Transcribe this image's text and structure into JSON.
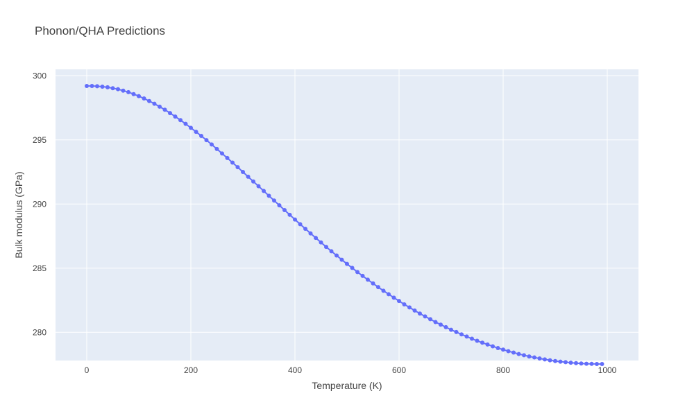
{
  "chart_data": {
    "type": "scatter",
    "mode": "lines+markers",
    "title": "Phonon/QHA Predictions",
    "xlabel": "Temperature (K)",
    "ylabel": "Bulk modulus (GPa)",
    "xlim": [
      -60,
      1060
    ],
    "ylim": [
      277.8,
      300.5
    ],
    "xticks": [
      0,
      200,
      400,
      600,
      800,
      1000
    ],
    "yticks": [
      280,
      285,
      290,
      295,
      300
    ],
    "grid": true,
    "color": "#636efa",
    "plot_bg": "#e5ecf6",
    "series": [
      {
        "x": [
          0,
          10,
          20,
          30,
          40,
          50,
          60,
          70,
          80,
          90,
          100,
          110,
          120,
          130,
          140,
          150,
          160,
          170,
          180,
          190,
          200,
          210,
          220,
          230,
          240,
          250,
          260,
          270,
          280,
          290,
          300,
          310,
          320,
          330,
          340,
          350,
          360,
          370,
          380,
          390,
          400,
          410,
          420,
          430,
          440,
          450,
          460,
          470,
          480,
          490,
          500,
          510,
          520,
          530,
          540,
          550,
          560,
          570,
          580,
          590,
          600,
          610,
          620,
          630,
          640,
          650,
          660,
          670,
          680,
          690,
          700,
          710,
          720,
          730,
          740,
          750,
          760,
          770,
          780,
          790,
          800,
          810,
          820,
          830,
          840,
          850,
          860,
          870,
          880,
          890,
          900,
          910,
          920,
          930,
          940,
          950,
          960,
          970,
          980,
          990
        ],
        "y": [
          299.2,
          299.2,
          299.18,
          299.15,
          299.1,
          299.03,
          298.95,
          298.84,
          298.72,
          298.57,
          298.41,
          298.23,
          298.03,
          297.82,
          297.59,
          297.35,
          297.09,
          296.82,
          296.54,
          296.25,
          295.94,
          295.63,
          295.31,
          294.98,
          294.64,
          294.29,
          293.94,
          293.59,
          293.23,
          292.87,
          292.5,
          292.13,
          291.76,
          291.39,
          291.02,
          290.64,
          290.27,
          289.9,
          289.53,
          289.16,
          288.79,
          288.43,
          288.07,
          287.71,
          287.36,
          287.01,
          286.66,
          286.32,
          285.99,
          285.66,
          285.33,
          285.02,
          284.7,
          284.4,
          284.1,
          283.81,
          283.52,
          283.24,
          282.97,
          282.7,
          282.44,
          282.18,
          281.94,
          281.7,
          281.46,
          281.24,
          281.02,
          280.8,
          280.6,
          280.4,
          280.2,
          280.02,
          279.84,
          279.67,
          279.5,
          279.34,
          279.19,
          279.05,
          278.91,
          278.77,
          278.65,
          278.53,
          278.42,
          278.31,
          278.21,
          278.12,
          278.04,
          277.96,
          277.89,
          277.82,
          277.76,
          277.71,
          277.67,
          277.63,
          277.6,
          277.57,
          277.55,
          277.54,
          277.53,
          277.53
        ]
      }
    ]
  }
}
